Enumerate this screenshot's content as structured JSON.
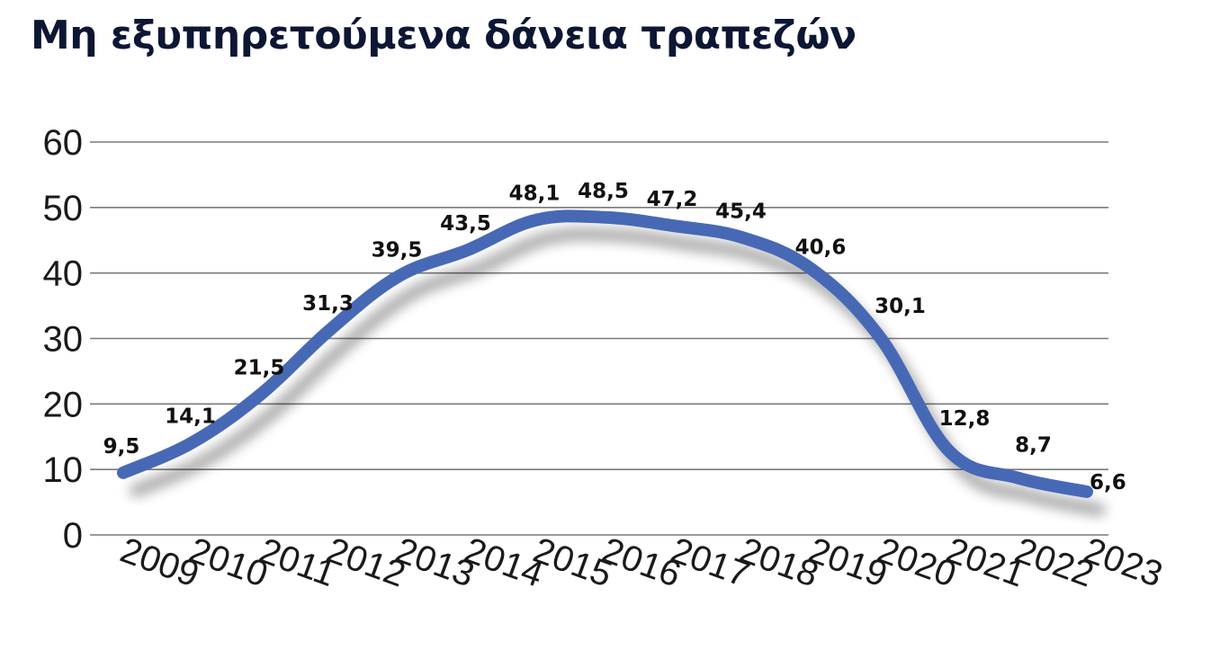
{
  "title": "Μη εξυπηρετούμενα δάνεια τραπεζών",
  "colors": {
    "line": "#4669b5",
    "grid": "#7a7a7a",
    "title": "#0d1633"
  },
  "chart_data": {
    "type": "line",
    "title": "Μη εξυπηρετούμενα δάνεια τραπεζών",
    "xlabel": "",
    "ylabel": "",
    "categories": [
      "2009",
      "2010",
      "2011",
      "2012",
      "2013",
      "2014",
      "2015",
      "2016",
      "2017",
      "2018",
      "2019",
      "2020",
      "2021",
      "2022",
      "2023"
    ],
    "series": [
      {
        "values": [
          9.5,
          14.1,
          21.5,
          31.3,
          39.5,
          43.5,
          48.1,
          48.5,
          47.2,
          45.4,
          40.6,
          30.1,
          12.8,
          8.7,
          6.6
        ],
        "labels": [
          "9,5",
          "14,1",
          "21,5",
          "31,3",
          "39,5",
          "43,5",
          "48,1",
          "48,5",
          "47,2",
          "45,4",
          "40,6",
          "30,1",
          "12,8",
          "8,7",
          "6,6"
        ]
      }
    ],
    "ylim": [
      0,
      60
    ],
    "yticks": [
      0,
      10,
      20,
      30,
      40,
      50,
      60
    ],
    "grid": true,
    "legend": "none"
  }
}
